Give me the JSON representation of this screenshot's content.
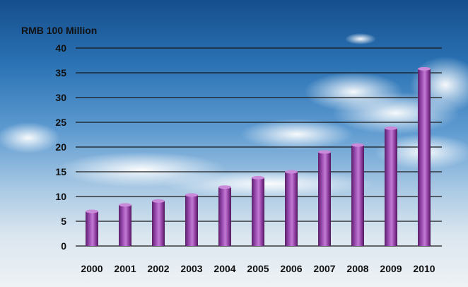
{
  "chart_data": {
    "type": "bar",
    "title": "",
    "ylabel": "RMB 100 Million",
    "xlabel": "",
    "categories": [
      "2000",
      "2001",
      "2002",
      "2003",
      "2004",
      "2005",
      "2006",
      "2007",
      "2008",
      "2009",
      "2010"
    ],
    "values": [
      7.0,
      8.3,
      9.1,
      10.3,
      11.9,
      13.8,
      15.0,
      19.0,
      20.4,
      23.8,
      35.8
    ],
    "ylim": [
      0,
      40
    ],
    "yticks": [
      0,
      5,
      10,
      15,
      20,
      25,
      30,
      35,
      40
    ],
    "grid": true,
    "bar_color": "#8b3a9c"
  }
}
